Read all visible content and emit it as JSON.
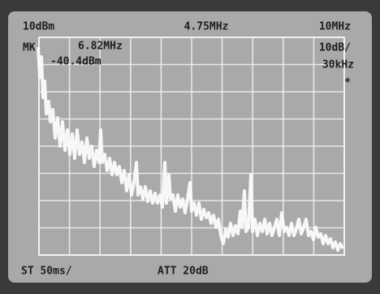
{
  "display": {
    "top_left": "10dBm",
    "top_center": "4.75MHz",
    "top_right": "10MHz",
    "marker_label": "MK",
    "marker_freq": "6.82MHz",
    "marker_level": "-40.4dBm",
    "scale": "10dB/",
    "rbw": "30kHz",
    "star": "*",
    "sweep": "ST 50ms/",
    "attenuation": "ATT 20dB"
  }
}
